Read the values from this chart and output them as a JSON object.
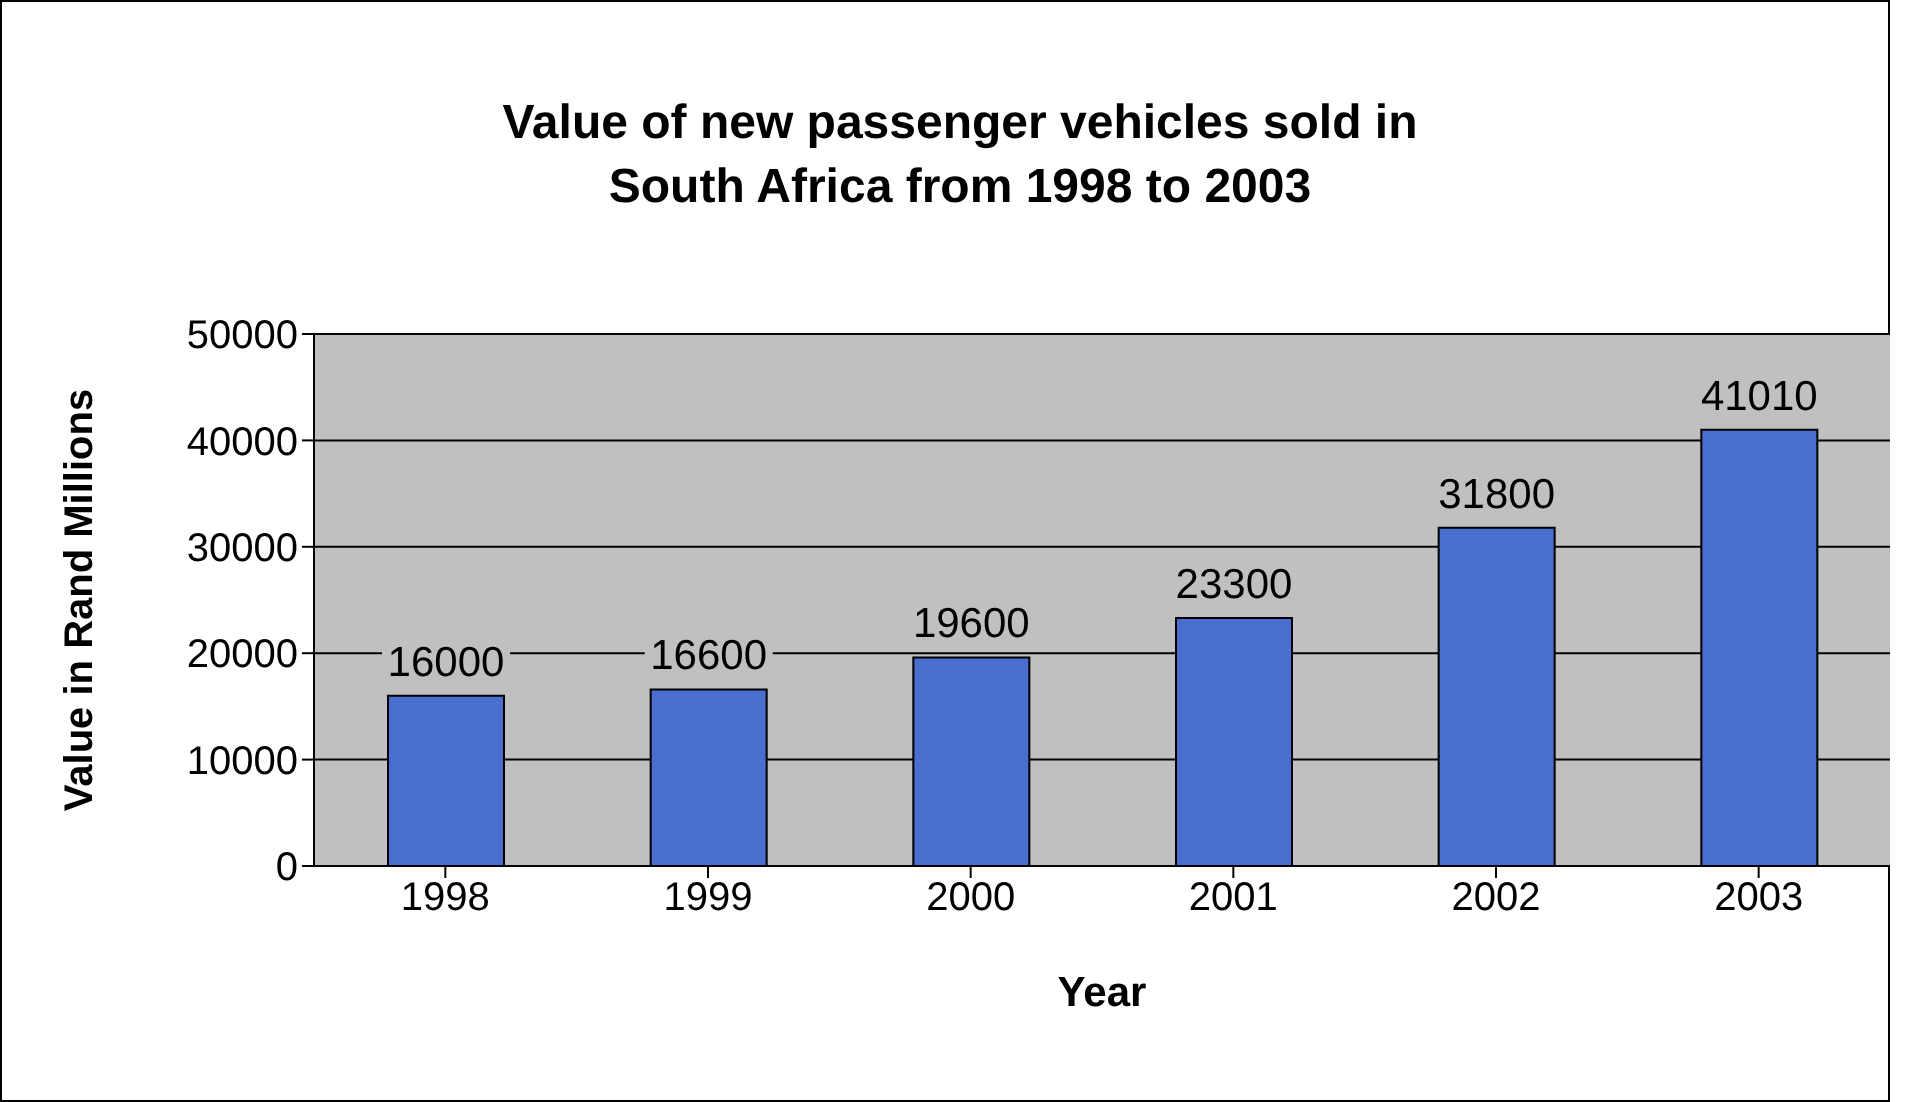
{
  "chart_data": {
    "type": "bar",
    "title": "Value of new passenger vehicles sold in South Africa from 1998 to 2003",
    "xlabel": "Year",
    "ylabel": "Value in Rand Millions",
    "categories": [
      "1998",
      "1999",
      "2000",
      "2001",
      "2002",
      "2003"
    ],
    "values": [
      16000,
      16600,
      19600,
      23300,
      31800,
      41010
    ],
    "color": "#4a6ed0",
    "ylim": [
      0,
      50000
    ],
    "yticks": [
      0,
      10000,
      20000,
      30000,
      40000,
      50000
    ],
    "grid": "y",
    "data_labels": true
  }
}
